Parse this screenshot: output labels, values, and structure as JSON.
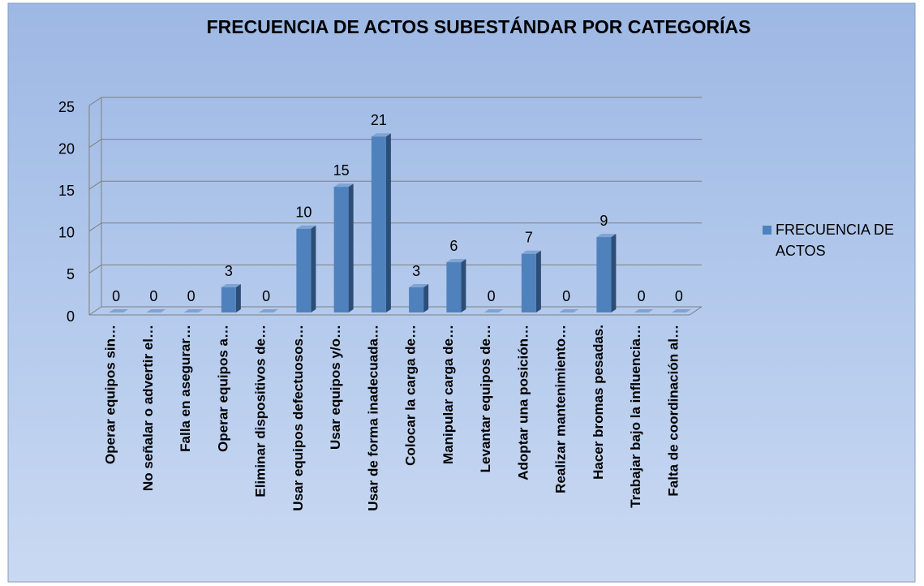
{
  "chart_data": {
    "type": "bar3d",
    "title": "FRECUENCIA DE ACTOS SUBESTÁNDAR POR CATEGORÍAS",
    "categories": [
      "Operar equipos sin…",
      "No señalar o advertir el…",
      "Falla en asegurar…",
      "Operar equipos a…",
      "Eliminar dispositivos de…",
      "Usar equipos defectuosos…",
      "Usar equipos y/o…",
      "Usar de forma inadecuada…",
      "Colocar la carga de…",
      "Manipular carga de…",
      "Levantar equipos de…",
      "Adoptar una posición…",
      "Realizar mantenimiento…",
      "Hacer bromas pesadas.",
      "Trabajar bajo la influencia…",
      "Falta de coordinación al…"
    ],
    "series": [
      {
        "name": "FRECUENCIA DE ACTOS",
        "color": "#4f81bd",
        "values": [
          0,
          0,
          0,
          3,
          0,
          10,
          15,
          21,
          3,
          6,
          0,
          7,
          0,
          9,
          0,
          0
        ]
      }
    ],
    "ylim": [
      0,
      25
    ],
    "yticks": [
      0,
      5,
      10,
      15,
      20,
      25
    ],
    "grid": true,
    "legend": "right"
  }
}
